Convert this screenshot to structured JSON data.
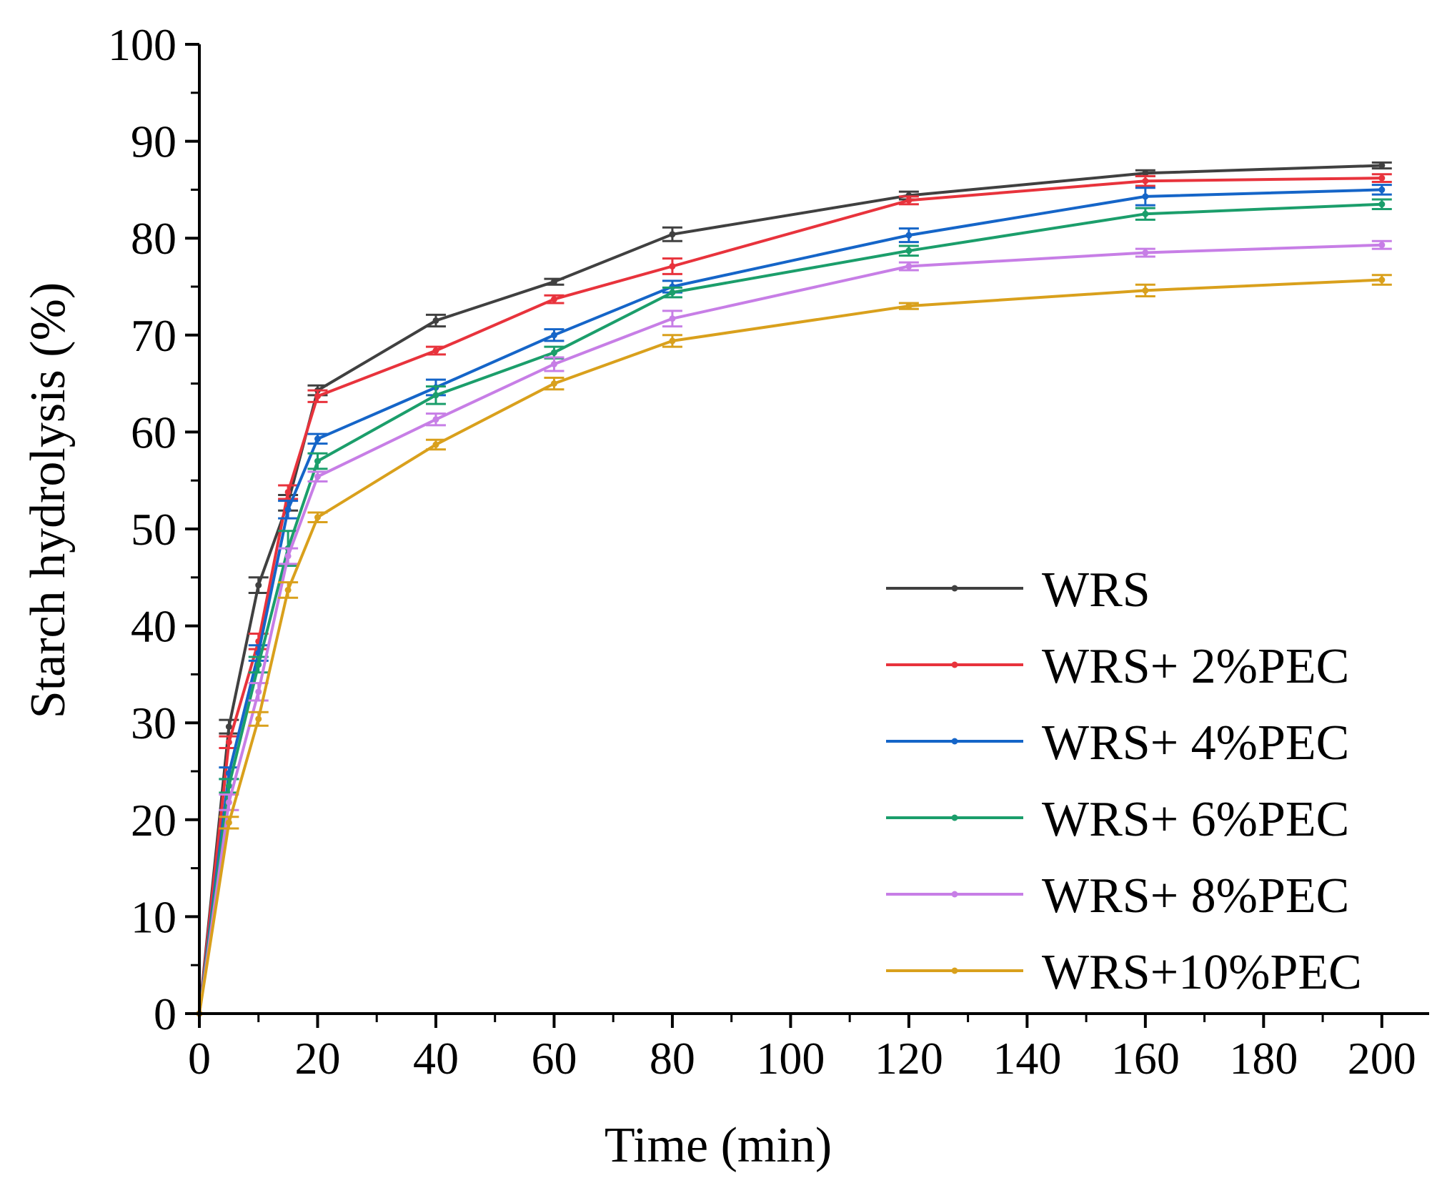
{
  "chart_data": {
    "type": "line",
    "title": "",
    "xlabel": "Time (min)",
    "ylabel": "Starch hydrolysis (%)",
    "xlim": [
      0,
      208
    ],
    "ylim": [
      0,
      100
    ],
    "xticks": [
      0,
      20,
      40,
      60,
      80,
      100,
      120,
      140,
      160,
      180,
      200
    ],
    "yticks": [
      0,
      10,
      20,
      30,
      40,
      50,
      60,
      70,
      80,
      90,
      100
    ],
    "x_tick_labels": [
      "0",
      "20",
      "40",
      "60",
      "80",
      "100",
      "120",
      "140",
      "160",
      "180",
      "200"
    ],
    "y_tick_labels": [
      "0",
      "10",
      "20",
      "30",
      "40",
      "50",
      "60",
      "70",
      "80",
      "90",
      "100"
    ],
    "grid": false,
    "legend_position": "bottom-right",
    "x": [
      0,
      5,
      10,
      15,
      20,
      40,
      60,
      80,
      120,
      160,
      200
    ],
    "series": [
      {
        "name": "WRS",
        "color": "#404040",
        "values": [
          0,
          29.6,
          44.2,
          52.7,
          64.3,
          71.5,
          75.5,
          80.4,
          84.4,
          86.7,
          87.5
        ],
        "errors": [
          0,
          0.7,
          0.8,
          0.8,
          0.5,
          0.6,
          0.3,
          0.7,
          0.4,
          0.3,
          0.3
        ]
      },
      {
        "name": "WRS+ 2%PEC",
        "color": "#e8333c",
        "values": [
          0,
          28.0,
          38.4,
          53.8,
          63.7,
          68.4,
          73.7,
          77.1,
          83.9,
          85.9,
          86.2
        ],
        "errors": [
          0,
          0.6,
          0.8,
          0.7,
          0.6,
          0.4,
          0.4,
          0.8,
          0.4,
          0.5,
          0.4
        ]
      },
      {
        "name": "WRS+ 4%PEC",
        "color": "#1565c8",
        "values": [
          0,
          24.8,
          37.2,
          52.0,
          59.3,
          64.6,
          70.0,
          75.0,
          80.3,
          84.3,
          85.0
        ],
        "errors": [
          0,
          0.6,
          0.8,
          0.9,
          0.5,
          0.8,
          0.6,
          0.6,
          0.7,
          0.9,
          0.5
        ]
      },
      {
        "name": "WRS+ 6%PEC",
        "color": "#1b9e6b",
        "values": [
          0,
          23.5,
          36.0,
          48.0,
          57.0,
          63.8,
          68.2,
          74.4,
          78.7,
          82.5,
          83.5
        ],
        "errors": [
          0,
          0.7,
          0.8,
          1.8,
          0.8,
          0.9,
          0.6,
          0.5,
          0.5,
          0.6,
          0.5
        ]
      },
      {
        "name": "WRS+ 8%PEC",
        "color": "#c77ee6",
        "values": [
          0,
          21.8,
          33.2,
          47.2,
          55.4,
          61.3,
          67.0,
          71.7,
          77.1,
          78.5,
          79.3
        ],
        "errors": [
          0,
          0.8,
          0.9,
          0.8,
          0.5,
          0.6,
          0.7,
          0.8,
          0.4,
          0.4,
          0.4
        ]
      },
      {
        "name": "WRS+10%PEC",
        "color": "#d9a01c",
        "values": [
          0,
          19.7,
          30.4,
          43.7,
          51.2,
          58.7,
          65.0,
          69.4,
          73.0,
          74.6,
          75.7
        ],
        "errors": [
          0,
          0.6,
          0.7,
          0.8,
          0.5,
          0.5,
          0.6,
          0.6,
          0.3,
          0.6,
          0.5
        ]
      }
    ]
  }
}
